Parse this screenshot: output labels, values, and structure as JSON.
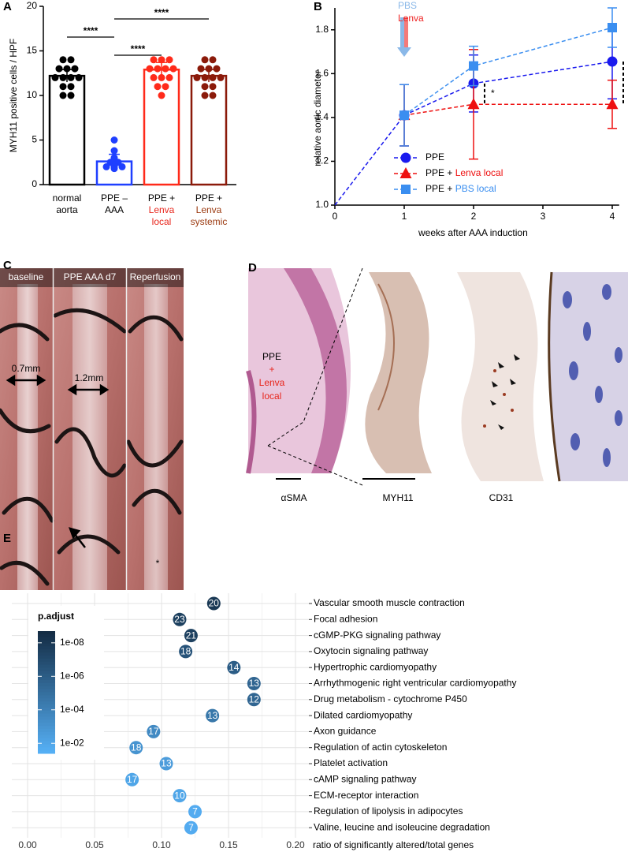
{
  "panel_labels": [
    "A",
    "B",
    "C",
    "D",
    "E"
  ],
  "photo_c": {
    "labels": [
      "baseline",
      "PPE AAA d7",
      "Reperfusion"
    ],
    "measurements": [
      "0.7mm",
      "1.2mm"
    ],
    "marker": "*"
  },
  "histology_d": {
    "group_label": [
      "PPE",
      "+",
      "Lenva",
      "local"
    ],
    "stain_labels": [
      "αSMA",
      "MYH11",
      "CD31"
    ]
  },
  "chart_data": [
    {
      "type": "bar",
      "ylabel": "MYH11 positive cells / HPF",
      "categories": [
        [
          "normal",
          "aorta"
        ],
        [
          "PPE –",
          "AAA"
        ],
        [
          "PPE +",
          "Lenva",
          "local"
        ],
        [
          "PPE +",
          "Lenva",
          "systemic"
        ]
      ],
      "category_colors": [
        [
          "#000000",
          "#000000"
        ],
        [
          "#000000",
          "#000000"
        ],
        [
          "#000000",
          "#e8261c",
          "#e8261c"
        ],
        [
          "#000000",
          "#9b3a10",
          "#9b3a10"
        ]
      ],
      "colors": [
        "#000000",
        "#1f3fff",
        "#ff2a1a",
        "#8b1a0a"
      ],
      "values": [
        12.2,
        2.6,
        12.9,
        12.2
      ],
      "errors": [
        0.7,
        0.8,
        0.8,
        0.7
      ],
      "points": [
        [
          14,
          14,
          13,
          13,
          13,
          12,
          12,
          12,
          12,
          11,
          11,
          10,
          10
        ],
        [
          5,
          3.8,
          3,
          2.8,
          2.5,
          2.5,
          2.2,
          2,
          2,
          2,
          1.8
        ],
        [
          14,
          14,
          14,
          13,
          13,
          13,
          13,
          12,
          12,
          12,
          11,
          11,
          10
        ],
        [
          14,
          14,
          13,
          13,
          13,
          12,
          12,
          12,
          12,
          11,
          11,
          10,
          10
        ]
      ],
      "significance": [
        {
          "text": "****",
          "groups": [
            1,
            3
          ]
        },
        {
          "text": "****",
          "groups": [
            0,
            1
          ]
        },
        {
          "text": "****",
          "groups": [
            1,
            2
          ]
        }
      ],
      "ylim": [
        0,
        20
      ],
      "yticks": [
        0,
        5,
        10,
        15,
        20
      ]
    },
    {
      "type": "line",
      "xlabel": "weeks after AAA induction",
      "ylabel": "relative aortic diameter",
      "xlim": [
        0,
        4.1
      ],
      "xticks": [
        0,
        1,
        2,
        3,
        4
      ],
      "ylim": [
        1.0,
        1.9
      ],
      "yticks": [
        {
          "value": 1.0,
          "label": "1.0"
        },
        1.2,
        1.4,
        1.6,
        1.8
      ],
      "series": [
        {
          "name": "PPE",
          "color": "#1a1aee",
          "marker": "circle",
          "x": [
            0,
            1,
            2,
            4
          ],
          "values": [
            1.0,
            1.41,
            1.555,
            1.655
          ],
          "errors": [
            null,
            0.14,
            0.13,
            0.17
          ]
        },
        {
          "name": "PPE + Lenva local",
          "color": "#ee1111",
          "marker": "triangle",
          "x": [
            1,
            2,
            4
          ],
          "values": [
            1.41,
            1.46,
            1.46
          ],
          "errors": [
            0.14,
            0.25,
            0.11
          ]
        },
        {
          "name": "PPE + PBS local",
          "color": "#3a8ef0",
          "marker": "square",
          "x": [
            1,
            2,
            4
          ],
          "values": [
            1.41,
            1.635,
            1.81
          ],
          "errors": [
            0.14,
            0.09,
            0.09
          ]
        }
      ],
      "treatment_arrows": {
        "x": 1,
        "labels": [
          {
            "text": "PBS",
            "color": "#8ab8e8"
          },
          {
            "text": "Lenva",
            "color": "#ee2222"
          }
        ]
      },
      "comparisons": [
        {
          "text": "*",
          "x": 2,
          "series": [
            0,
            1
          ]
        },
        {
          "text": "*",
          "x": 4,
          "series": [
            0,
            1
          ]
        }
      ]
    },
    {
      "type": "dot",
      "xlabel": "ratio of significantly altered/total genes",
      "categories": [
        "Vascular smooth muscle contraction",
        "Focal adhesion",
        "cGMP-PKG signaling pathway",
        "Oxytocin signaling pathway",
        "Hypertrophic cardiomyopathy",
        "Arrhythmogenic right ventricular cardiomyopathy",
        "Drug metabolism - cytochrome P450",
        "Dilated cardiomyopathy",
        "Axon guidance",
        "Regulation of actin cytoskeleton",
        "Platelet activation",
        "cAMP signaling pathway",
        "ECM-receptor interaction",
        "Regulation of lipolysis in adipocytes",
        "Valine, leucine and isoleucine degradation"
      ],
      "values": [
        0.139,
        0.1135,
        0.122,
        0.118,
        0.154,
        0.169,
        0.169,
        0.138,
        0.094,
        0.081,
        0.1035,
        0.078,
        0.1135,
        0.125,
        0.122
      ],
      "counts": [
        20,
        23,
        21,
        18,
        14,
        13,
        12,
        13,
        17,
        18,
        13,
        17,
        10,
        7,
        7
      ],
      "p_adjust": [
        1e-08,
        3e-08,
        3e-08,
        3e-07,
        1e-06,
        3e-06,
        3e-06,
        3e-05,
        0.0003,
        0.001,
        0.003,
        0.01,
        0.01,
        0.02,
        0.02
      ],
      "legend_title": "p.adjust",
      "color_low": "#56B1F7",
      "color_high": "#132B43",
      "clim": [
        2e-09,
        0.04
      ],
      "cticks": [
        {
          "value": 1e-08,
          "label": "1e-08"
        },
        {
          "value": 1e-06,
          "label": "1e-06"
        },
        {
          "value": 0.0001,
          "label": "1e-04"
        },
        {
          "value": 0.01,
          "label": "1e-02"
        }
      ],
      "xlim": [
        -0.0118,
        0.21
      ],
      "xticks": [
        {
          "value": 0,
          "label": "0.00"
        },
        {
          "value": 0.05,
          "label": "0.05"
        },
        {
          "value": 0.1,
          "label": "0.10"
        },
        {
          "value": 0.15,
          "label": "0.15"
        },
        {
          "value": 0.2,
          "label": "0.20"
        }
      ],
      "grid": true
    }
  ]
}
